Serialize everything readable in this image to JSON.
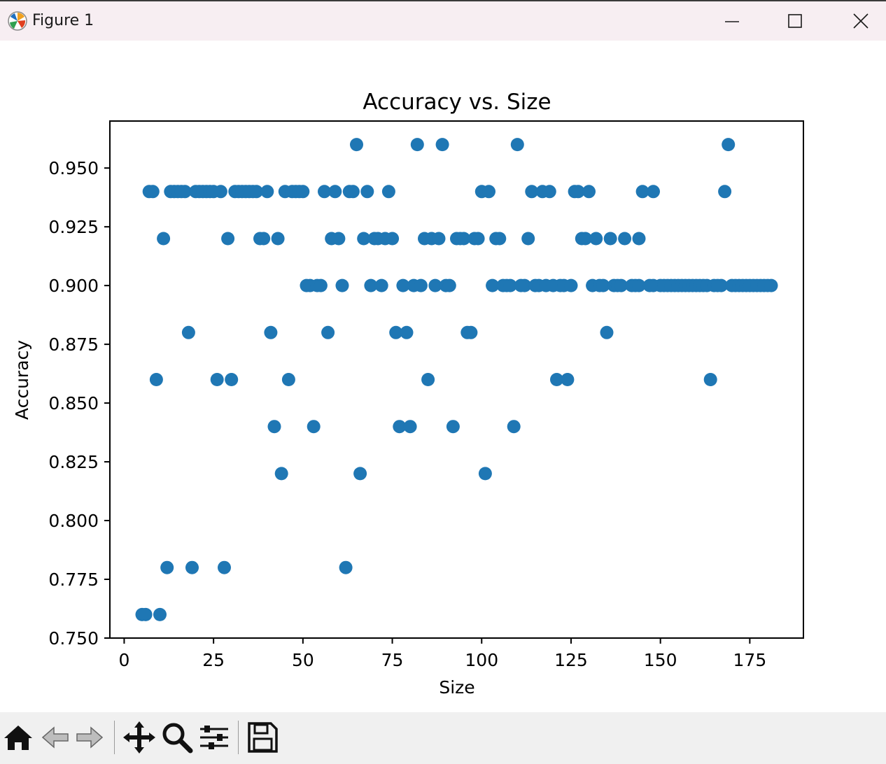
{
  "window": {
    "title": "Figure 1",
    "buttons": {
      "minimize": "minimize",
      "maximize": "maximize",
      "close": "close"
    }
  },
  "toolbar": {
    "tools": [
      "home-icon",
      "back-arrow-icon",
      "forward-arrow-icon",
      "pan-move-icon",
      "zoom-magnifier-icon",
      "configure-subplots-icon",
      "save-floppy-icon"
    ]
  },
  "colors": {
    "marker": "#1f77b4",
    "titlebar": "#f7eef2",
    "toolbar": "#f0f0f0"
  },
  "chart_data": {
    "type": "scatter",
    "title": "Accuracy vs. Size",
    "xlabel": "Size",
    "ylabel": "Accuracy",
    "xlim": [
      -4,
      190
    ],
    "ylim": [
      0.75,
      0.97
    ],
    "xticks": [
      0,
      25,
      50,
      75,
      100,
      125,
      150,
      175
    ],
    "xtick_labels": [
      "0",
      "25",
      "50",
      "75",
      "100",
      "125",
      "150",
      "175"
    ],
    "yticks": [
      0.75,
      0.775,
      0.8,
      0.825,
      0.85,
      0.875,
      0.9,
      0.925,
      0.95
    ],
    "ytick_labels": [
      "0.750",
      "0.775",
      "0.800",
      "0.825",
      "0.850",
      "0.875",
      "0.900",
      "0.925",
      "0.950"
    ],
    "grid": false,
    "series": [
      {
        "points": [
          [
            5,
            0.76
          ],
          [
            6,
            0.76
          ],
          [
            10,
            0.76
          ],
          [
            12,
            0.78
          ],
          [
            19,
            0.78
          ],
          [
            28,
            0.78
          ],
          [
            62,
            0.78
          ],
          [
            44,
            0.82
          ],
          [
            66,
            0.82
          ],
          [
            101,
            0.82
          ],
          [
            42,
            0.84
          ],
          [
            53,
            0.84
          ],
          [
            77,
            0.84
          ],
          [
            80,
            0.84
          ],
          [
            92,
            0.84
          ],
          [
            109,
            0.84
          ],
          [
            9,
            0.86
          ],
          [
            26,
            0.86
          ],
          [
            30,
            0.86
          ],
          [
            46,
            0.86
          ],
          [
            85,
            0.86
          ],
          [
            121,
            0.86
          ],
          [
            124,
            0.86
          ],
          [
            164,
            0.86
          ],
          [
            18,
            0.88
          ],
          [
            41,
            0.88
          ],
          [
            57,
            0.88
          ],
          [
            76,
            0.88
          ],
          [
            79,
            0.88
          ],
          [
            96,
            0.88
          ],
          [
            97,
            0.88
          ],
          [
            135,
            0.88
          ],
          [
            51,
            0.9
          ],
          [
            52,
            0.9
          ],
          [
            54,
            0.9
          ],
          [
            55,
            0.9
          ],
          [
            61,
            0.9
          ],
          [
            69,
            0.9
          ],
          [
            72,
            0.9
          ],
          [
            78,
            0.9
          ],
          [
            81,
            0.9
          ],
          [
            83,
            0.9
          ],
          [
            87,
            0.9
          ],
          [
            90,
            0.9
          ],
          [
            91,
            0.9
          ],
          [
            103,
            0.9
          ],
          [
            106,
            0.9
          ],
          [
            107,
            0.9
          ],
          [
            108,
            0.9
          ],
          [
            111,
            0.9
          ],
          [
            112,
            0.9
          ],
          [
            115,
            0.9
          ],
          [
            116,
            0.9
          ],
          [
            118,
            0.9
          ],
          [
            120,
            0.9
          ],
          [
            122,
            0.9
          ],
          [
            123,
            0.9
          ],
          [
            125,
            0.9
          ],
          [
            131,
            0.9
          ],
          [
            133,
            0.9
          ],
          [
            134,
            0.9
          ],
          [
            137,
            0.9
          ],
          [
            138,
            0.9
          ],
          [
            139,
            0.9
          ],
          [
            142,
            0.9
          ],
          [
            143,
            0.9
          ],
          [
            144,
            0.9
          ],
          [
            147,
            0.9
          ],
          [
            148,
            0.9
          ],
          [
            150,
            0.9
          ],
          [
            151,
            0.9
          ],
          [
            152,
            0.9
          ],
          [
            153,
            0.9
          ],
          [
            154,
            0.9
          ],
          [
            155,
            0.9
          ],
          [
            156,
            0.9
          ],
          [
            157,
            0.9
          ],
          [
            158,
            0.9
          ],
          [
            159,
            0.9
          ],
          [
            160,
            0.9
          ],
          [
            161,
            0.9
          ],
          [
            162,
            0.9
          ],
          [
            163,
            0.9
          ],
          [
            165,
            0.9
          ],
          [
            166,
            0.9
          ],
          [
            167,
            0.9
          ],
          [
            170,
            0.9
          ],
          [
            171,
            0.9
          ],
          [
            172,
            0.9
          ],
          [
            173,
            0.9
          ],
          [
            174,
            0.9
          ],
          [
            175,
            0.9
          ],
          [
            176,
            0.9
          ],
          [
            177,
            0.9
          ],
          [
            178,
            0.9
          ],
          [
            179,
            0.9
          ],
          [
            180,
            0.9
          ],
          [
            181,
            0.9
          ],
          [
            11,
            0.92
          ],
          [
            29,
            0.92
          ],
          [
            38,
            0.92
          ],
          [
            39,
            0.92
          ],
          [
            43,
            0.92
          ],
          [
            58,
            0.92
          ],
          [
            60,
            0.92
          ],
          [
            67,
            0.92
          ],
          [
            70,
            0.92
          ],
          [
            71,
            0.92
          ],
          [
            73,
            0.92
          ],
          [
            75,
            0.92
          ],
          [
            84,
            0.92
          ],
          [
            86,
            0.92
          ],
          [
            88,
            0.92
          ],
          [
            93,
            0.92
          ],
          [
            94,
            0.92
          ],
          [
            95,
            0.92
          ],
          [
            98,
            0.92
          ],
          [
            99,
            0.92
          ],
          [
            104,
            0.92
          ],
          [
            105,
            0.92
          ],
          [
            113,
            0.92
          ],
          [
            128,
            0.92
          ],
          [
            129,
            0.92
          ],
          [
            132,
            0.92
          ],
          [
            136,
            0.92
          ],
          [
            140,
            0.92
          ],
          [
            144,
            0.92
          ],
          [
            7,
            0.94
          ],
          [
            8,
            0.94
          ],
          [
            13,
            0.94
          ],
          [
            14,
            0.94
          ],
          [
            15,
            0.94
          ],
          [
            16,
            0.94
          ],
          [
            17,
            0.94
          ],
          [
            20,
            0.94
          ],
          [
            21,
            0.94
          ],
          [
            22,
            0.94
          ],
          [
            23,
            0.94
          ],
          [
            24,
            0.94
          ],
          [
            25,
            0.94
          ],
          [
            27,
            0.94
          ],
          [
            31,
            0.94
          ],
          [
            32,
            0.94
          ],
          [
            33,
            0.94
          ],
          [
            34,
            0.94
          ],
          [
            35,
            0.94
          ],
          [
            36,
            0.94
          ],
          [
            37,
            0.94
          ],
          [
            40,
            0.94
          ],
          [
            45,
            0.94
          ],
          [
            47,
            0.94
          ],
          [
            48,
            0.94
          ],
          [
            49,
            0.94
          ],
          [
            50,
            0.94
          ],
          [
            56,
            0.94
          ],
          [
            59,
            0.94
          ],
          [
            63,
            0.94
          ],
          [
            64,
            0.94
          ],
          [
            68,
            0.94
          ],
          [
            74,
            0.94
          ],
          [
            100,
            0.94
          ],
          [
            102,
            0.94
          ],
          [
            114,
            0.94
          ],
          [
            117,
            0.94
          ],
          [
            119,
            0.94
          ],
          [
            126,
            0.94
          ],
          [
            127,
            0.94
          ],
          [
            130,
            0.94
          ],
          [
            145,
            0.94
          ],
          [
            148,
            0.94
          ],
          [
            168,
            0.94
          ],
          [
            65,
            0.96
          ],
          [
            82,
            0.96
          ],
          [
            89,
            0.96
          ],
          [
            110,
            0.96
          ],
          [
            169,
            0.96
          ]
        ]
      }
    ]
  }
}
